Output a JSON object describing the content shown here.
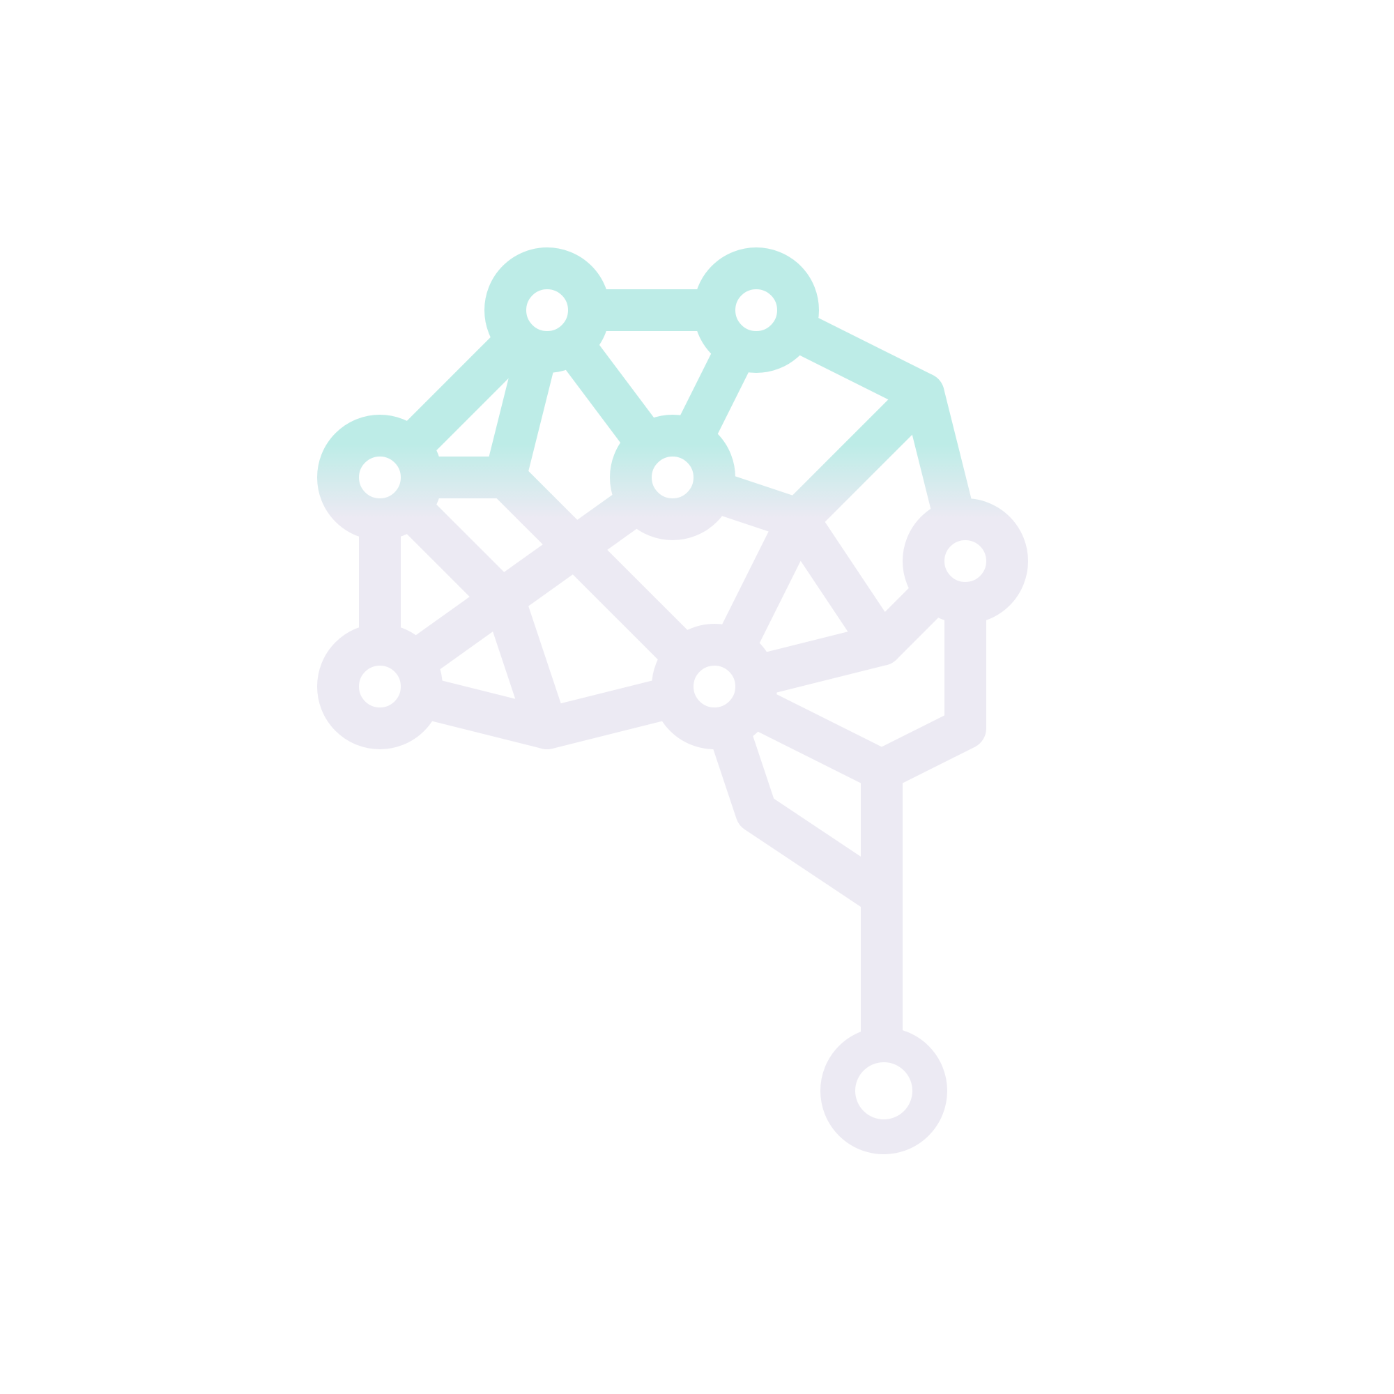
{
  "logo": {
    "icon": "neural-network-brain-icon",
    "colors": {
      "top": "#bdece7",
      "bottom": "#eceaf3",
      "background": "#ffffff"
    }
  }
}
